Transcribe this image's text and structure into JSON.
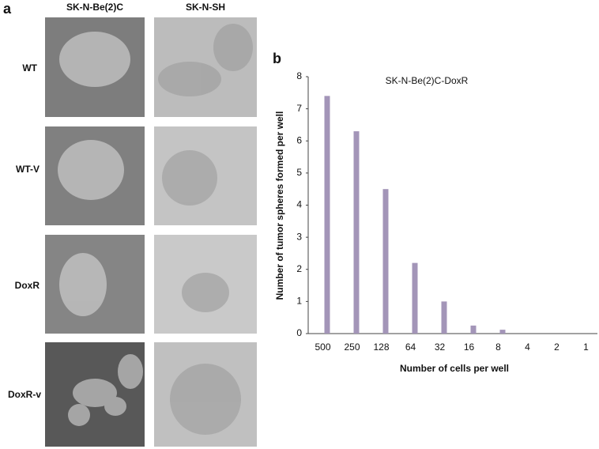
{
  "panel_a": {
    "label": "a",
    "columns": [
      "SK-N-Be(2)C",
      "SK-N-SH"
    ],
    "rows": [
      "WT",
      "WT-V",
      "DoxR",
      "DoxR-v"
    ]
  },
  "panel_b_label": "b",
  "chart_data": {
    "type": "bar",
    "title": "SK-N-Be(2)C-DoxR",
    "x_label": "Number of cells per well",
    "y_label": "Number of tumor spheres formed per well",
    "categories": [
      "500",
      "250",
      "128",
      "64",
      "32",
      "16",
      "8",
      "4",
      "2",
      "1"
    ],
    "values": [
      7.4,
      6.3,
      4.5,
      2.2,
      1.0,
      0.25,
      0.12,
      0,
      0,
      0
    ],
    "color": "#a395b8",
    "ylim": [
      0,
      8
    ],
    "yticks": [
      0,
      1,
      2,
      3,
      4,
      5,
      6,
      7,
      8
    ],
    "grid": false
  }
}
